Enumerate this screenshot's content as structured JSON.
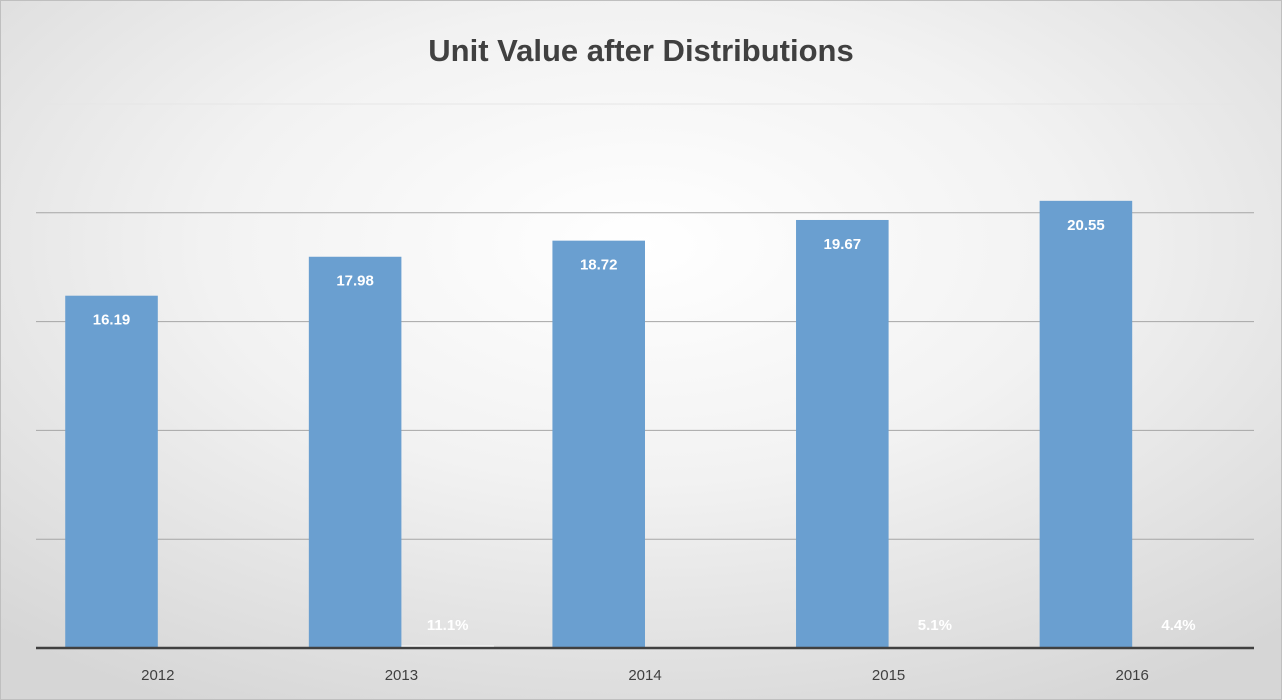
{
  "chart_data": {
    "type": "bar",
    "title": "Unit Value after Distributions",
    "categories": [
      "2012",
      "2013",
      "2014",
      "2015",
      "2016"
    ],
    "series": [
      {
        "color": "#6a9fd0",
        "values": [
          16.19,
          17.98,
          18.72,
          19.67,
          20.55
        ]
      },
      {
        "color": "#ffffff",
        "values": [
          null,
          0.111,
          null,
          0.051,
          0.044
        ],
        "value_labels": [
          null,
          "11.1%",
          null,
          "5.1%",
          "4.4%"
        ]
      }
    ],
    "ylim": [
      0,
      25
    ],
    "yticks": [
      0,
      5,
      10,
      15,
      20,
      25
    ],
    "grid": true
  }
}
